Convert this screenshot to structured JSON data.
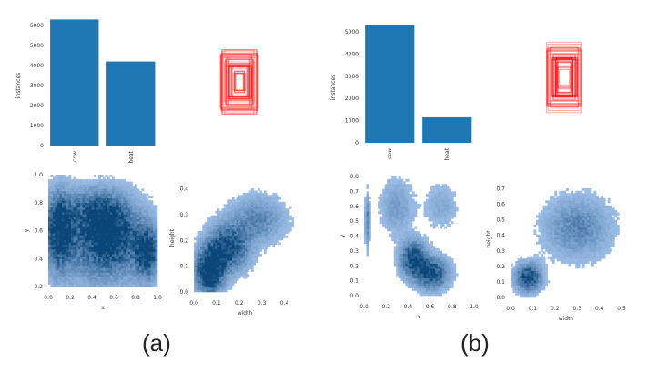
{
  "captions": {
    "a": "(a)",
    "b": "(b)"
  },
  "chart_data": [
    {
      "panel": "a",
      "type": "bar",
      "title": "",
      "categories": [
        "cow",
        "heat"
      ],
      "values": [
        6300,
        4200
      ],
      "xlabel": "",
      "ylabel": "instances",
      "ylim": [
        0,
        6000
      ],
      "yticks": [
        0,
        1000,
        2000,
        3000,
        4000,
        5000,
        6000
      ],
      "color": "#1f77b4"
    },
    {
      "panel": "a",
      "type": "heatmap",
      "xlabel": "x",
      "ylabel": "y",
      "xlim": [
        0,
        1
      ],
      "ylim": [
        0.2,
        1.0
      ],
      "xticks": [
        0.0,
        0.2,
        0.4,
        0.6,
        0.8,
        1.0
      ],
      "yticks": [
        0.2,
        0.4,
        0.6,
        0.8,
        1.0
      ],
      "clusters": [
        {
          "x": 0.1,
          "y": 0.6,
          "sx": 0.08,
          "sy": 0.18,
          "w": 3
        },
        {
          "x": 0.9,
          "y": 0.45,
          "sx": 0.07,
          "sy": 0.12,
          "w": 3
        },
        {
          "x": 0.55,
          "y": 0.6,
          "sx": 0.15,
          "sy": 0.15,
          "w": 2
        },
        {
          "x": 0.4,
          "y": 0.75,
          "sx": 0.2,
          "sy": 0.1,
          "w": 1.5
        },
        {
          "x": 0.5,
          "y": 0.5,
          "sx": 0.3,
          "sy": 0.2,
          "w": 2
        }
      ]
    },
    {
      "panel": "a",
      "type": "heatmap",
      "xlabel": "width",
      "ylabel": "height",
      "xlim": [
        0,
        0.45
      ],
      "ylim": [
        0,
        0.42
      ],
      "xticks": [
        0.0,
        0.1,
        0.2,
        0.3,
        0.4
      ],
      "yticks": [
        0.0,
        0.1,
        0.2,
        0.3,
        0.4
      ],
      "clusters": [
        {
          "x": 0.07,
          "y": 0.08,
          "sx": 0.04,
          "sy": 0.06,
          "w": 4
        },
        {
          "x": 0.15,
          "y": 0.17,
          "sx": 0.06,
          "sy": 0.06,
          "w": 3
        },
        {
          "x": 0.28,
          "y": 0.28,
          "sx": 0.08,
          "sy": 0.06,
          "w": 1.5
        }
      ]
    },
    {
      "panel": "a",
      "type": "boxes",
      "description_color": "#ff0000"
    },
    {
      "panel": "b",
      "type": "bar",
      "title": "",
      "categories": [
        "cow",
        "heat"
      ],
      "values": [
        5300,
        1150
      ],
      "xlabel": "",
      "ylabel": "instances",
      "ylim": [
        0,
        5000
      ],
      "yticks": [
        0,
        1000,
        2000,
        3000,
        4000,
        5000
      ],
      "color": "#1f77b4"
    },
    {
      "panel": "b",
      "type": "heatmap",
      "xlabel": "x",
      "ylabel": "y",
      "xlim": [
        0,
        1
      ],
      "ylim": [
        0,
        0.8
      ],
      "xticks": [
        0.0,
        0.2,
        0.4,
        0.6,
        0.8,
        1.0
      ],
      "yticks": [
        0.0,
        0.1,
        0.2,
        0.3,
        0.4,
        0.5,
        0.6,
        0.7,
        0.8
      ],
      "clusters": [
        {
          "x": 0.45,
          "y": 0.25,
          "sx": 0.08,
          "sy": 0.08,
          "w": 3
        },
        {
          "x": 0.62,
          "y": 0.15,
          "sx": 0.1,
          "sy": 0.07,
          "w": 3
        },
        {
          "x": 0.03,
          "y": 0.5,
          "sx": 0.015,
          "sy": 0.12,
          "w": 1.5
        },
        {
          "x": 0.3,
          "y": 0.6,
          "sx": 0.1,
          "sy": 0.12,
          "w": 1
        },
        {
          "x": 0.7,
          "y": 0.6,
          "sx": 0.1,
          "sy": 0.1,
          "w": 0.7
        }
      ]
    },
    {
      "panel": "b",
      "type": "heatmap",
      "xlabel": "width",
      "ylabel": "height",
      "xlim": [
        0,
        0.5
      ],
      "ylim": [
        0,
        0.75
      ],
      "xticks": [
        0.0,
        0.1,
        0.2,
        0.3,
        0.4,
        0.5
      ],
      "yticks": [
        0.0,
        0.1,
        0.2,
        0.3,
        0.4,
        0.5,
        0.6,
        0.7
      ],
      "clusters": [
        {
          "x": 0.08,
          "y": 0.13,
          "sx": 0.04,
          "sy": 0.06,
          "w": 3
        },
        {
          "x": 0.3,
          "y": 0.45,
          "sx": 0.1,
          "sy": 0.13,
          "w": 1.5
        }
      ]
    },
    {
      "panel": "b",
      "type": "boxes",
      "description_color": "#ff0000"
    }
  ]
}
